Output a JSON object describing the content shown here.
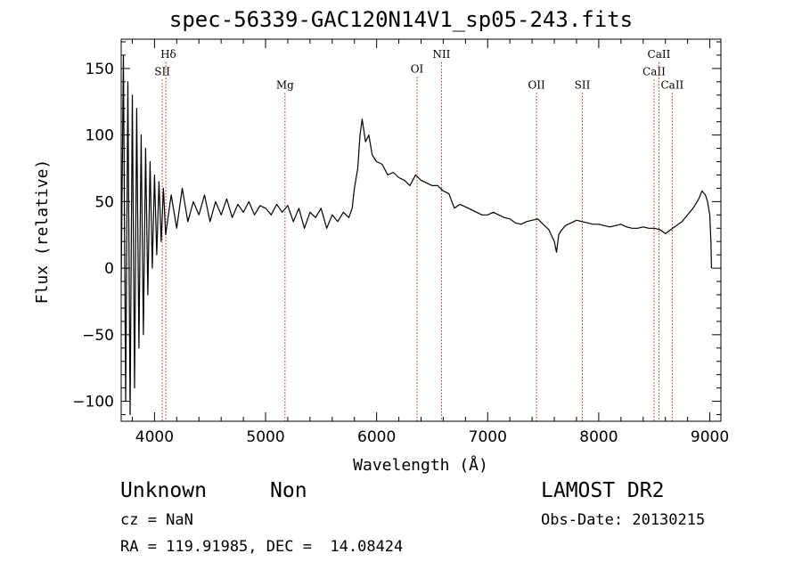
{
  "chart_data": {
    "type": "line",
    "title": "spec-56339-GAC120N14V1_sp05-243.fits",
    "xlabel": "Wavelength (Å)",
    "ylabel": "Flux (relative)",
    "xlim": [
      3700,
      9100
    ],
    "ylim": [
      -115,
      172
    ],
    "x_ticks": [
      4000,
      5000,
      6000,
      7000,
      8000,
      9000
    ],
    "y_ticks": [
      -100,
      -50,
      0,
      50,
      100,
      150
    ],
    "x_tick_labels": [
      "4000",
      "5000",
      "6000",
      "7000",
      "8000",
      "9000"
    ],
    "y_tick_labels": [
      "−100",
      "−50",
      "0",
      "50",
      "100",
      "150"
    ],
    "grid": false,
    "line_color": "#000000",
    "marker_color": "#b22222",
    "series": [
      {
        "x": [
          3700,
          3720,
          3740,
          3760,
          3780,
          3800,
          3820,
          3840,
          3860,
          3880,
          3900,
          3920,
          3940,
          3960,
          3980,
          4000,
          4020,
          4040,
          4060,
          4080,
          4100,
          4150,
          4200,
          4250,
          4300,
          4350,
          4400,
          4450,
          4500,
          4550,
          4600,
          4650,
          4700,
          4750,
          4800,
          4850,
          4900,
          4950,
          5000,
          5050,
          5100,
          5150,
          5200,
          5250,
          5300,
          5350,
          5400,
          5450,
          5500,
          5550,
          5600,
          5650,
          5700,
          5750,
          5780,
          5800,
          5830,
          5850,
          5870,
          5900,
          5930,
          5960,
          6000,
          6050,
          6100,
          6150,
          6200,
          6250,
          6300,
          6350,
          6400,
          6450,
          6500,
          6550,
          6600,
          6650,
          6700,
          6750,
          6800,
          6850,
          6900,
          6950,
          7000,
          7050,
          7100,
          7150,
          7200,
          7250,
          7300,
          7350,
          7400,
          7450,
          7500,
          7550,
          7600,
          7620,
          7640,
          7660,
          7700,
          7750,
          7800,
          7850,
          7900,
          7950,
          8000,
          8050,
          8100,
          8150,
          8200,
          8250,
          8300,
          8350,
          8400,
          8450,
          8500,
          8550,
          8600,
          8650,
          8700,
          8750,
          8800,
          8850,
          8900,
          8930,
          8960,
          8980,
          9000,
          9010,
          9015
        ],
        "y": [
          -10,
          160,
          -100,
          140,
          -110,
          130,
          -90,
          120,
          -60,
          100,
          -50,
          90,
          -20,
          80,
          0,
          70,
          10,
          65,
          20,
          60,
          25,
          55,
          30,
          60,
          35,
          50,
          40,
          55,
          35,
          50,
          40,
          52,
          38,
          48,
          42,
          50,
          40,
          47,
          45,
          40,
          48,
          42,
          47,
          35,
          45,
          30,
          42,
          38,
          45,
          30,
          40,
          35,
          42,
          38,
          45,
          60,
          75,
          100,
          112,
          95,
          100,
          85,
          80,
          78,
          70,
          72,
          68,
          66,
          62,
          70,
          66,
          64,
          62,
          62,
          58,
          56,
          45,
          48,
          46,
          44,
          42,
          40,
          40,
          42,
          40,
          38,
          37,
          34,
          33,
          35,
          36,
          37,
          33,
          29,
          20,
          12,
          25,
          28,
          32,
          34,
          36,
          35,
          34,
          33,
          33,
          32,
          31,
          32,
          33,
          31,
          30,
          30,
          31,
          30,
          30,
          29,
          26,
          29,
          32,
          35,
          40,
          45,
          52,
          58,
          55,
          50,
          40,
          20,
          0
        ]
      }
    ],
    "line_markers": [
      {
        "label": "Hδ",
        "x": 4102,
        "label_y": 158,
        "label_anchor": "start"
      },
      {
        "label": "SII",
        "x": 4070,
        "label_y": 145,
        "label_anchor": "middle"
      },
      {
        "label": "Mg",
        "x": 5175,
        "label_y": 135,
        "label_anchor": "middle"
      },
      {
        "label": "OI",
        "x": 6364,
        "label_y": 147,
        "label_anchor": "middle"
      },
      {
        "label": "NII",
        "x": 6584,
        "label_y": 158,
        "label_anchor": "middle"
      },
      {
        "label": "OII",
        "x": 7440,
        "label_y": 135,
        "label_anchor": "middle"
      },
      {
        "label": "SII",
        "x": 7852,
        "label_y": 135,
        "label_anchor": "middle"
      },
      {
        "label": "CaII",
        "x": 8498,
        "label_y": 145,
        "label_anchor": "middle"
      },
      {
        "label": "CaII",
        "x": 8542,
        "label_y": 158,
        "label_anchor": "middle"
      },
      {
        "label": "CaII",
        "x": 8662,
        "label_y": 135,
        "label_anchor": "middle"
      }
    ]
  },
  "info": {
    "object_class": "Unknown",
    "subclass": "Non",
    "survey": "LAMOST DR2",
    "redshift": "cz = NaN",
    "obs_date": "Obs-Date: 20130215",
    "coordinates": "RA = 119.91985, DEC =  14.08424"
  }
}
